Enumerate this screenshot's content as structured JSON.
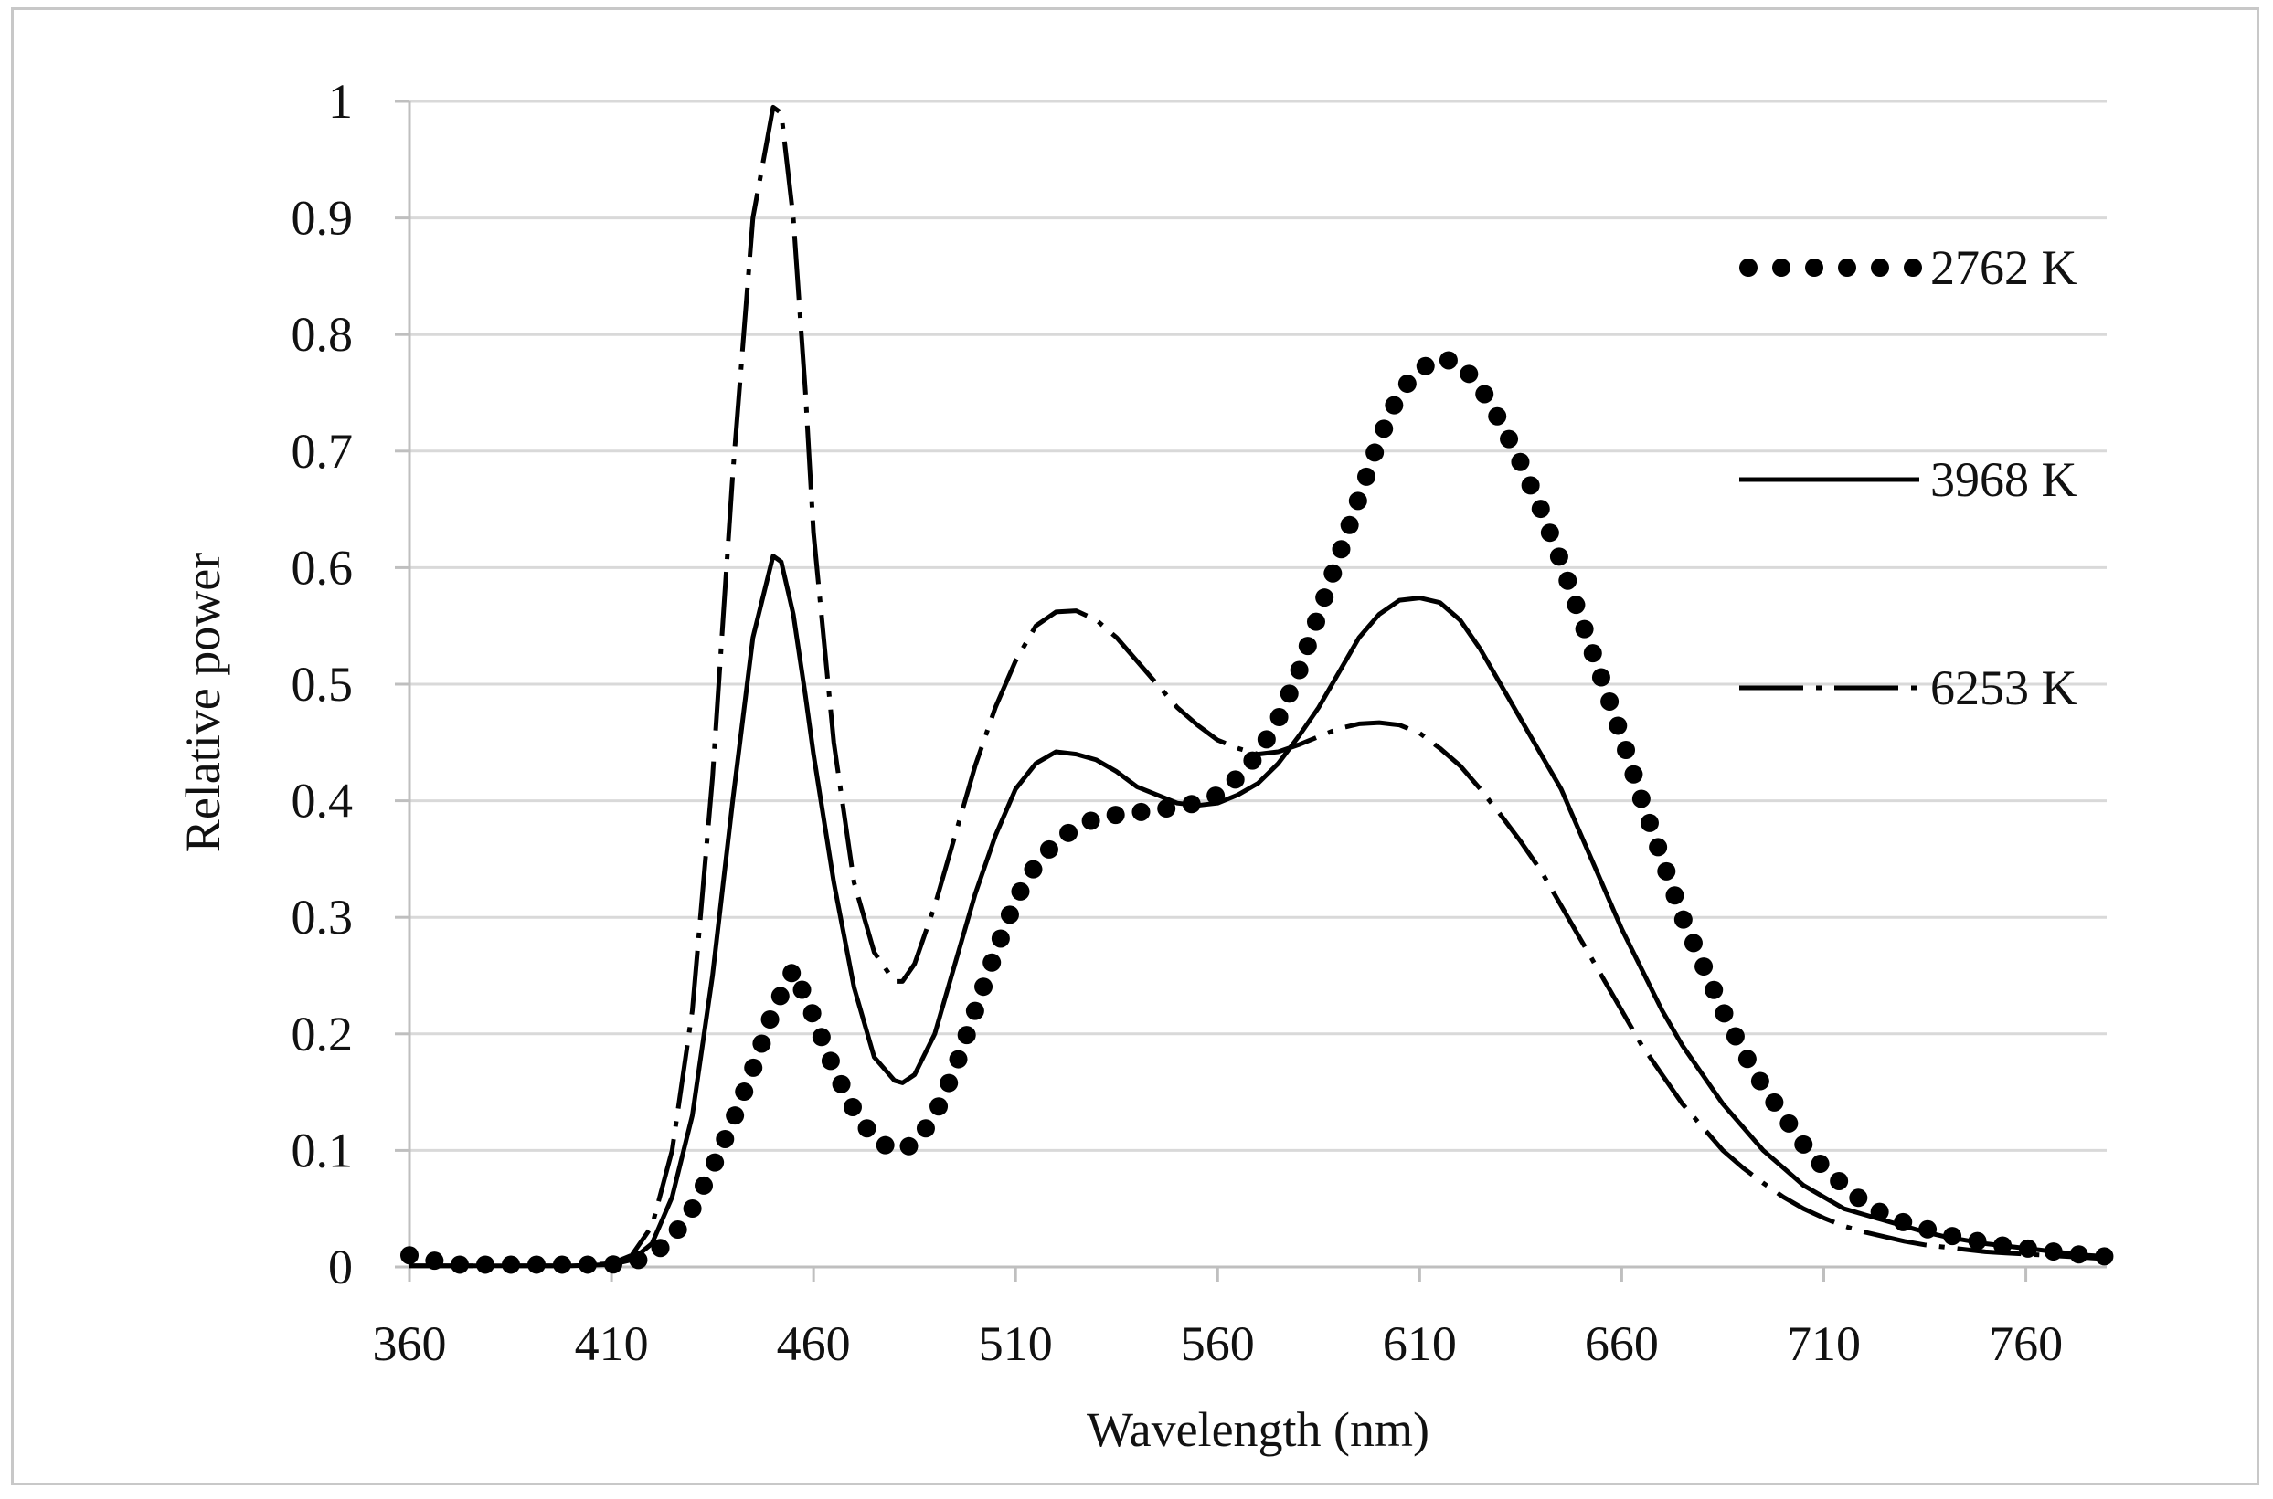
{
  "chart_data": {
    "type": "line",
    "title": "",
    "xlabel": "Wavelength (nm)",
    "ylabel": "Relative power",
    "xlim": [
      360,
      780
    ],
    "ylim": [
      0,
      1
    ],
    "x_ticks": [
      360,
      410,
      460,
      510,
      560,
      610,
      660,
      710,
      760
    ],
    "y_ticks": [
      0,
      0.1,
      0.2,
      0.3,
      0.4,
      0.5,
      0.6,
      0.7,
      0.8,
      0.9,
      1
    ],
    "y_tick_labels": [
      "0",
      "0.1",
      "0.2",
      "0.3",
      "0.4",
      "0.5",
      "0.6",
      "0.7",
      "0.8",
      "0.9",
      "1"
    ],
    "grid": "horizontal",
    "legend_position": "right",
    "series": [
      {
        "name": "2762 K",
        "style": "dotted",
        "x": [
          360,
          364,
          368,
          372,
          376,
          380,
          390,
          400,
          410,
          415,
          420,
          425,
          430,
          435,
          440,
          445,
          450,
          455,
          460,
          465,
          470,
          475,
          480,
          485,
          490,
          495,
          500,
          505,
          510,
          515,
          520,
          525,
          530,
          535,
          540,
          545,
          550,
          555,
          560,
          565,
          570,
          575,
          580,
          585,
          590,
          595,
          600,
          605,
          610,
          615,
          620,
          625,
          630,
          635,
          640,
          645,
          650,
          655,
          660,
          665,
          670,
          675,
          680,
          685,
          690,
          695,
          700,
          705,
          710,
          715,
          720,
          725,
          730,
          735,
          740,
          745,
          750,
          755,
          760,
          765,
          770,
          775,
          780
        ],
        "y": [
          0.01,
          0.007,
          0.004,
          0.002,
          0.002,
          0.002,
          0.002,
          0.002,
          0.002,
          0.004,
          0.01,
          0.025,
          0.05,
          0.085,
          0.125,
          0.17,
          0.22,
          0.255,
          0.215,
          0.17,
          0.135,
          0.11,
          0.1,
          0.105,
          0.13,
          0.17,
          0.22,
          0.27,
          0.315,
          0.345,
          0.365,
          0.377,
          0.385,
          0.388,
          0.39,
          0.392,
          0.395,
          0.398,
          0.405,
          0.42,
          0.44,
          0.47,
          0.51,
          0.56,
          0.61,
          0.66,
          0.71,
          0.75,
          0.77,
          0.78,
          0.775,
          0.755,
          0.725,
          0.69,
          0.65,
          0.605,
          0.555,
          0.505,
          0.455,
          0.4,
          0.35,
          0.3,
          0.26,
          0.22,
          0.185,
          0.155,
          0.13,
          0.105,
          0.085,
          0.07,
          0.055,
          0.045,
          0.038,
          0.033,
          0.028,
          0.024,
          0.021,
          0.018,
          0.016,
          0.014,
          0.012,
          0.01,
          0.009
        ]
      },
      {
        "name": "3968 K",
        "style": "solid",
        "x": [
          360,
          380,
          400,
          410,
          415,
          420,
          425,
          430,
          435,
          440,
          445,
          450,
          452,
          455,
          458,
          460,
          465,
          470,
          475,
          480,
          482,
          485,
          490,
          495,
          500,
          505,
          510,
          515,
          520,
          525,
          530,
          535,
          540,
          545,
          550,
          555,
          560,
          565,
          570,
          575,
          580,
          585,
          590,
          595,
          600,
          605,
          610,
          615,
          620,
          625,
          630,
          635,
          640,
          645,
          650,
          655,
          660,
          665,
          670,
          675,
          680,
          685,
          690,
          695,
          700,
          705,
          710,
          715,
          720,
          725,
          730,
          735,
          740,
          745,
          750,
          755,
          760,
          765,
          770,
          775,
          780
        ],
        "y": [
          0.001,
          0.001,
          0.001,
          0.002,
          0.006,
          0.02,
          0.06,
          0.13,
          0.25,
          0.4,
          0.54,
          0.61,
          0.605,
          0.56,
          0.49,
          0.44,
          0.33,
          0.24,
          0.18,
          0.16,
          0.158,
          0.165,
          0.2,
          0.26,
          0.32,
          0.37,
          0.41,
          0.432,
          0.442,
          0.44,
          0.435,
          0.425,
          0.412,
          0.405,
          0.398,
          0.396,
          0.398,
          0.405,
          0.415,
          0.432,
          0.455,
          0.48,
          0.51,
          0.54,
          0.56,
          0.572,
          0.574,
          0.57,
          0.555,
          0.53,
          0.5,
          0.47,
          0.44,
          0.41,
          0.37,
          0.33,
          0.29,
          0.255,
          0.22,
          0.19,
          0.165,
          0.14,
          0.12,
          0.1,
          0.085,
          0.07,
          0.06,
          0.05,
          0.045,
          0.04,
          0.035,
          0.03,
          0.026,
          0.023,
          0.02,
          0.018,
          0.016,
          0.014,
          0.012,
          0.01,
          0.009
        ]
      },
      {
        "name": "6253 K",
        "style": "dash-dot",
        "x": [
          360,
          380,
          400,
          410,
          415,
          420,
          425,
          430,
          435,
          440,
          445,
          450,
          452,
          455,
          458,
          460,
          465,
          470,
          475,
          480,
          482,
          485,
          490,
          495,
          500,
          505,
          510,
          515,
          520,
          525,
          530,
          535,
          540,
          545,
          550,
          555,
          560,
          565,
          570,
          575,
          580,
          585,
          590,
          595,
          600,
          605,
          610,
          615,
          620,
          625,
          630,
          635,
          640,
          645,
          650,
          655,
          660,
          665,
          670,
          675,
          680,
          685,
          690,
          695,
          700,
          705,
          710,
          715,
          720,
          725,
          730,
          735,
          740,
          745,
          750,
          755,
          760,
          765,
          770,
          775,
          780
        ],
        "y": [
          0.001,
          0.001,
          0.001,
          0.003,
          0.01,
          0.035,
          0.1,
          0.22,
          0.42,
          0.68,
          0.9,
          0.995,
          0.99,
          0.9,
          0.75,
          0.63,
          0.45,
          0.33,
          0.27,
          0.245,
          0.245,
          0.26,
          0.31,
          0.37,
          0.43,
          0.48,
          0.52,
          0.55,
          0.562,
          0.563,
          0.555,
          0.54,
          0.52,
          0.5,
          0.48,
          0.465,
          0.452,
          0.445,
          0.44,
          0.442,
          0.448,
          0.455,
          0.462,
          0.466,
          0.467,
          0.465,
          0.458,
          0.445,
          0.43,
          0.41,
          0.388,
          0.365,
          0.34,
          0.31,
          0.28,
          0.25,
          0.22,
          0.19,
          0.165,
          0.14,
          0.12,
          0.1,
          0.085,
          0.072,
          0.06,
          0.05,
          0.042,
          0.035,
          0.03,
          0.026,
          0.022,
          0.019,
          0.017,
          0.015,
          0.013,
          0.012,
          0.011,
          0.01,
          0.009,
          0.008,
          0.007
        ]
      }
    ]
  }
}
